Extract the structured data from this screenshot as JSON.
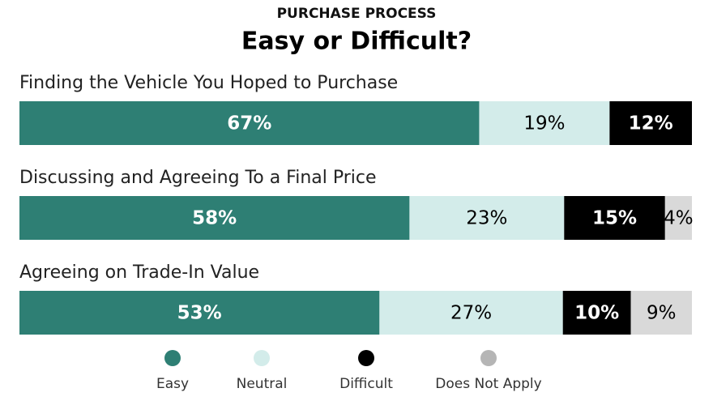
{
  "chart_data": {
    "type": "stacked-bar-horizontal",
    "subtitle": "PURCHASE PROCESS",
    "title": "Easy or Difficult?",
    "categories": [
      "Finding the Vehicle You Hoped to Purchase",
      "Discussing and Agreeing To a Final Price",
      "Agreeing on Trade-In Value"
    ],
    "series": [
      {
        "name": "Easy",
        "color": "#2e7f74",
        "values": [
          67,
          58,
          53
        ],
        "value_labels": [
          "67%",
          "58%",
          "53%"
        ]
      },
      {
        "name": "Neutral",
        "color": "#d3ecea",
        "values": [
          19,
          23,
          27
        ],
        "value_labels": [
          "19%",
          "23%",
          "27%"
        ]
      },
      {
        "name": "Difficult",
        "color": "#000000",
        "values": [
          12,
          15,
          10
        ],
        "value_labels": [
          "12%",
          "15%",
          "10%"
        ]
      },
      {
        "name": "Does Not Apply",
        "color": "#d9d9d9",
        "values": [
          null,
          4,
          9
        ],
        "value_labels": [
          null,
          "4%",
          "9%"
        ]
      }
    ],
    "legend": "bottom"
  }
}
